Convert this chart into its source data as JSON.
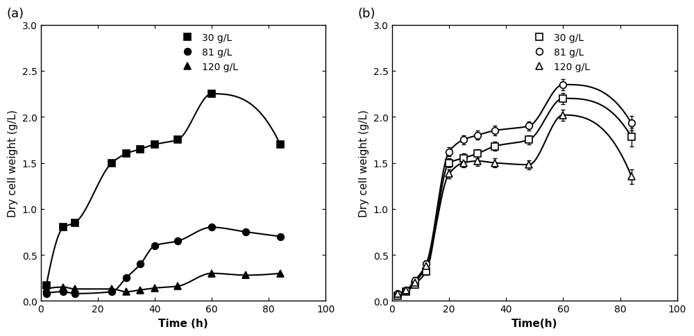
{
  "panel_a": {
    "series": [
      {
        "label": "30 g/L",
        "marker": "s",
        "fillstyle": "full",
        "x": [
          2,
          8,
          12,
          25,
          30,
          35,
          40,
          48,
          60,
          84
        ],
        "y": [
          0.17,
          0.8,
          0.85,
          1.5,
          1.6,
          1.65,
          1.7,
          1.75,
          2.25,
          1.7
        ]
      },
      {
        "label": "81 g/L",
        "marker": "o",
        "fillstyle": "full",
        "x": [
          2,
          8,
          12,
          25,
          30,
          35,
          40,
          48,
          60,
          72,
          84
        ],
        "y": [
          0.08,
          0.1,
          0.08,
          0.1,
          0.25,
          0.4,
          0.6,
          0.65,
          0.8,
          0.75,
          0.7
        ]
      },
      {
        "label": "120 g/L",
        "marker": "^",
        "fillstyle": "full",
        "x": [
          2,
          8,
          12,
          25,
          30,
          35,
          40,
          48,
          60,
          72,
          84
        ],
        "y": [
          0.13,
          0.15,
          0.13,
          0.13,
          0.1,
          0.12,
          0.14,
          0.16,
          0.3,
          0.28,
          0.3
        ]
      }
    ],
    "xlabel": "Time (h)",
    "ylabel": "Dry cell weight (g/L)",
    "ylim": [
      0,
      3.0
    ],
    "xlim": [
      0,
      100
    ],
    "yticks": [
      0.0,
      0.5,
      1.0,
      1.5,
      2.0,
      2.5,
      3.0
    ],
    "xticks": [
      0,
      20,
      40,
      60,
      80,
      100
    ],
    "label": "(a)"
  },
  "panel_b": {
    "series": [
      {
        "label": "30 g/L",
        "marker": "s",
        "fillstyle": "none",
        "x": [
          2,
          5,
          8,
          12,
          20,
          25,
          30,
          36,
          48,
          60,
          84
        ],
        "y": [
          0.06,
          0.1,
          0.18,
          0.32,
          1.5,
          1.55,
          1.6,
          1.68,
          1.75,
          2.2,
          1.78
        ],
        "yerr": [
          0.03,
          0.03,
          0.03,
          0.04,
          0.05,
          0.05,
          0.05,
          0.05,
          0.05,
          0.06,
          0.1
        ]
      },
      {
        "label": "81 g/L",
        "marker": "o",
        "fillstyle": "none",
        "x": [
          2,
          5,
          8,
          12,
          20,
          25,
          30,
          36,
          48,
          60,
          84
        ],
        "y": [
          0.08,
          0.12,
          0.22,
          0.4,
          1.62,
          1.75,
          1.8,
          1.85,
          1.9,
          2.35,
          1.93
        ],
        "yerr": [
          0.03,
          0.03,
          0.04,
          0.04,
          0.05,
          0.05,
          0.05,
          0.05,
          0.05,
          0.06,
          0.08
        ]
      },
      {
        "label": "120 g/L",
        "marker": "^",
        "fillstyle": "none",
        "x": [
          2,
          5,
          8,
          12,
          20,
          25,
          30,
          36,
          48,
          60,
          84
        ],
        "y": [
          0.08,
          0.12,
          0.2,
          0.38,
          1.38,
          1.5,
          1.52,
          1.5,
          1.48,
          2.02,
          1.35
        ],
        "yerr": [
          0.03,
          0.03,
          0.04,
          0.04,
          0.05,
          0.05,
          0.05,
          0.05,
          0.05,
          0.06,
          0.08
        ]
      }
    ],
    "xlabel": "Time(h)",
    "ylabel": "Dry cell weight (g/L)",
    "ylim": [
      0,
      3.0
    ],
    "xlim": [
      0,
      100
    ],
    "yticks": [
      0.0,
      0.5,
      1.0,
      1.5,
      2.0,
      2.5,
      3.0
    ],
    "xticks": [
      0,
      20,
      40,
      60,
      80,
      100
    ],
    "label": "(b)"
  },
  "line_color": "#000000",
  "marker_size": 7,
  "line_width": 1.5,
  "legend_fontsize": 10,
  "axis_fontsize": 11,
  "tick_fontsize": 10,
  "label_fontsize": 13
}
